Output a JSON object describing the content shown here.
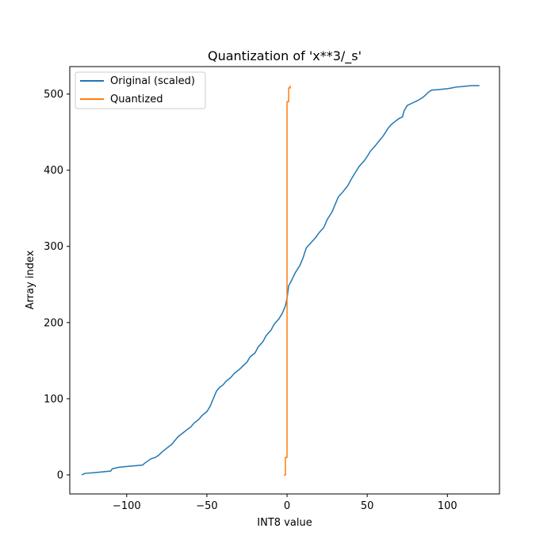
{
  "chart_data": {
    "type": "line",
    "title": "Quantization of 'x**3/_s'",
    "xlabel": "INT8 value",
    "ylabel": "Array index",
    "xlim": [
      -135.5,
      132.5
    ],
    "ylim": [
      -25,
      536
    ],
    "xticks": [
      -100,
      -50,
      0,
      50,
      100
    ],
    "yticks": [
      0,
      100,
      200,
      300,
      400,
      500
    ],
    "xtick_labels": [
      "−100",
      "−50",
      "0",
      "50",
      "100"
    ],
    "ytick_labels": [
      "0",
      "100",
      "200",
      "300",
      "400",
      "500"
    ],
    "grid": false,
    "legend_position": "top-left",
    "series": [
      {
        "name": "Original (scaled)",
        "color": "#1f77b4",
        "x": [
          -128,
          -126,
          -120,
          -115,
          -110,
          -109,
          -105,
          -100,
          -95,
          -90,
          -89,
          -87,
          -85,
          -82,
          -80,
          -78,
          -75,
          -72,
          -70,
          -68,
          -65,
          -62,
          -60,
          -58,
          -55,
          -53,
          -50,
          -48,
          -46,
          -45,
          -44,
          -42,
          -40,
          -38,
          -35,
          -33,
          -30,
          -28,
          -25,
          -23,
          -20,
          -18,
          -15,
          -13,
          -10,
          -8,
          -5,
          -3,
          -1,
          0,
          1,
          3,
          5,
          8,
          10,
          12,
          15,
          18,
          20,
          23,
          25,
          28,
          30,
          32,
          35,
          38,
          40,
          42,
          45,
          48,
          50,
          52,
          55,
          58,
          60,
          63,
          65,
          68,
          70,
          72,
          73,
          75,
          78,
          80,
          82,
          85,
          88,
          90,
          95,
          100,
          103,
          105,
          110,
          115,
          120
        ],
        "y": [
          0,
          2,
          3,
          4,
          5,
          8,
          10,
          11,
          12,
          13,
          15,
          18,
          21,
          23,
          26,
          30,
          35,
          40,
          45,
          50,
          55,
          60,
          63,
          68,
          73,
          78,
          83,
          90,
          100,
          105,
          110,
          115,
          118,
          123,
          128,
          133,
          138,
          142,
          148,
          155,
          160,
          168,
          175,
          183,
          190,
          198,
          205,
          212,
          222,
          232,
          248,
          256,
          265,
          275,
          285,
          298,
          305,
          312,
          318,
          325,
          335,
          345,
          355,
          365,
          372,
          380,
          388,
          395,
          405,
          412,
          418,
          425,
          432,
          440,
          445,
          455,
          460,
          465,
          468,
          470,
          478,
          485,
          488,
          490,
          492,
          496,
          502,
          505,
          506,
          507,
          508,
          509,
          510,
          511,
          511
        ]
      },
      {
        "name": "Quantized",
        "color": "#ff7f0e",
        "x": [
          -2,
          -1,
          -1,
          0,
          0,
          1,
          1,
          2,
          2
        ],
        "y": [
          0,
          0,
          23,
          23,
          490,
          490,
          508,
          508,
          511
        ]
      }
    ]
  }
}
